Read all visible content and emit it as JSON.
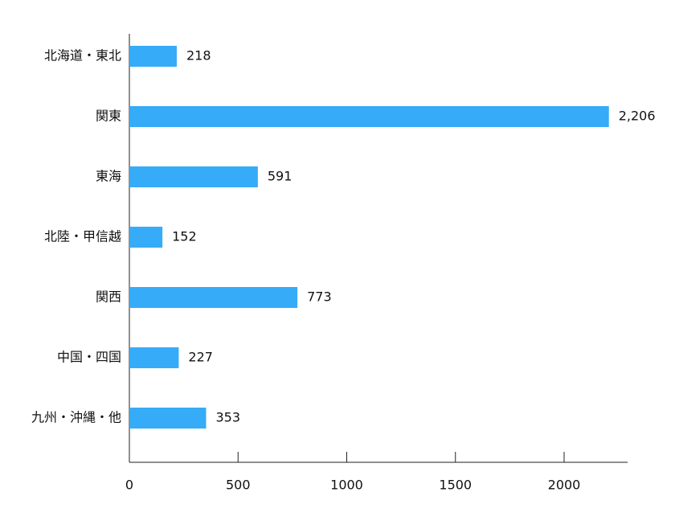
{
  "chart_data": {
    "type": "barh",
    "categories": [
      "北海道・東北",
      "関東",
      "東海",
      "北陸・甲信越",
      "関西",
      "中国・四国",
      "九州・沖縄・他"
    ],
    "values": [
      218,
      2206,
      591,
      152,
      773,
      227,
      353
    ],
    "value_labels": [
      "218",
      "2,206",
      "591",
      "152",
      "773",
      "227",
      "353"
    ],
    "color": "#36abf8",
    "xlim": [
      0,
      2292
    ],
    "xticks": [
      0,
      500,
      1000,
      1500,
      2000
    ]
  }
}
